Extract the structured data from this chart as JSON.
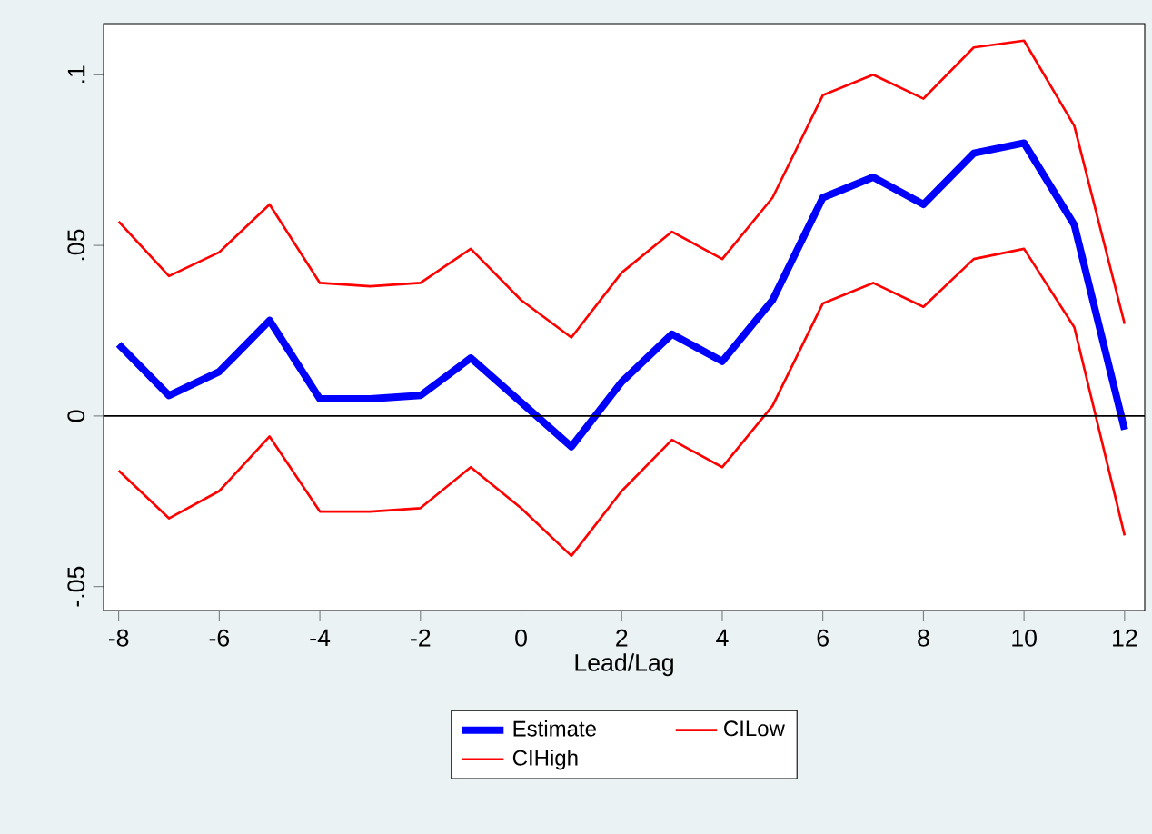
{
  "chart_data": {
    "type": "line",
    "xlabel": "Lead/Lag",
    "x": [
      -8,
      -7,
      -6,
      -5,
      -4,
      -3,
      -2,
      -1,
      0,
      1,
      2,
      3,
      4,
      5,
      6,
      7,
      8,
      9,
      10,
      11,
      12
    ],
    "series": [
      {
        "name": "Estimate",
        "color": "#0000ff",
        "values": [
          0.021,
          0.006,
          0.013,
          0.028,
          0.005,
          0.005,
          0.006,
          0.017,
          0.004,
          -0.009,
          0.01,
          0.024,
          0.016,
          0.034,
          0.064,
          0.07,
          0.062,
          0.077,
          0.08,
          0.056,
          -0.004
        ]
      },
      {
        "name": "CILow",
        "color": "#ff0000",
        "values": [
          -0.016,
          -0.03,
          -0.022,
          -0.006,
          -0.028,
          -0.028,
          -0.027,
          -0.015,
          -0.027,
          -0.041,
          -0.022,
          -0.007,
          -0.015,
          0.003,
          0.033,
          0.039,
          0.032,
          0.046,
          0.049,
          0.026,
          -0.035
        ]
      },
      {
        "name": "CIHigh",
        "color": "#ff0000",
        "values": [
          0.057,
          0.041,
          0.048,
          0.062,
          0.039,
          0.038,
          0.039,
          0.049,
          0.034,
          0.023,
          0.042,
          0.054,
          0.046,
          0.064,
          0.094,
          0.1,
          0.093,
          0.108,
          0.11,
          0.085,
          0.027
        ]
      }
    ],
    "xlim": [
      -8.3,
      12.4
    ],
    "ylim": [
      -0.057,
      0.115
    ],
    "xticks": [
      -8,
      -6,
      -4,
      -2,
      0,
      2,
      4,
      6,
      8,
      10,
      12
    ],
    "yticks": [
      {
        "value": -0.05,
        "label": "-.05"
      },
      0,
      {
        "value": 0.05,
        "label": ".05"
      },
      {
        "value": 0.1,
        "label": ".1"
      }
    ],
    "ref_lines": [
      {
        "axis": "y",
        "value": 0,
        "color": "#000000"
      }
    ],
    "legend": "bottom"
  }
}
